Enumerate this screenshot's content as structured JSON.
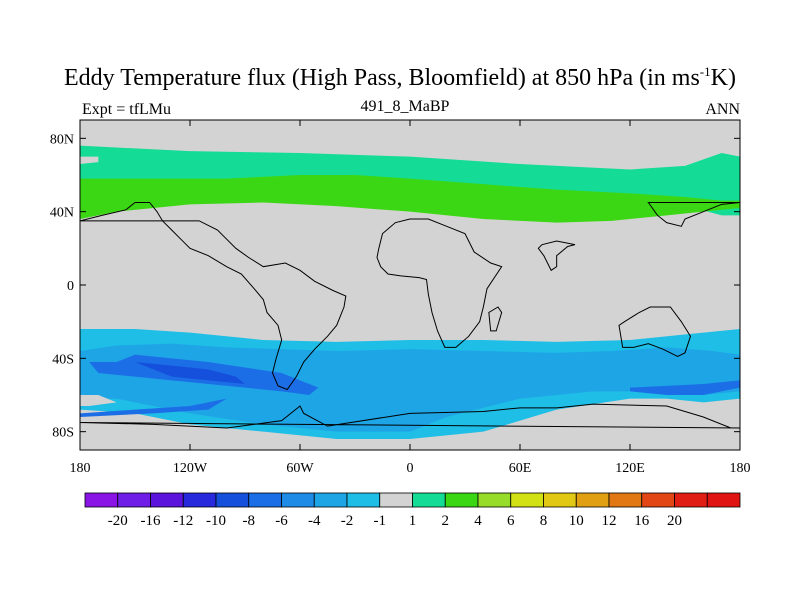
{
  "chart_data": {
    "type": "heatmap",
    "title_prefix": "Eddy Temperature flux (High Pass, Bloomfield) at 850 hPa (in ms",
    "title_sup": "-1",
    "title_suffix": "K)",
    "left_label": "Expt = tfLMu",
    "center_label": "491_8_MaBP",
    "right_label": "ANN",
    "x_range": [
      -180,
      180
    ],
    "y_range": [
      -90,
      90
    ],
    "x_ticks": [
      {
        "value": -180,
        "label": "180"
      },
      {
        "value": -120,
        "label": "120W"
      },
      {
        "value": -60,
        "label": "60W"
      },
      {
        "value": 0,
        "label": "0"
      },
      {
        "value": 60,
        "label": "60E"
      },
      {
        "value": 120,
        "label": "120E"
      },
      {
        "value": 180,
        "label": "180"
      }
    ],
    "y_ticks": [
      {
        "value": 80,
        "label": "80N"
      },
      {
        "value": 40,
        "label": "40N"
      },
      {
        "value": 0,
        "label": "0"
      },
      {
        "value": -40,
        "label": "40S"
      },
      {
        "value": -80,
        "label": "80S"
      }
    ],
    "background_color": "#d3d3d3",
    "colorbar": {
      "colors": [
        "#8a14e6",
        "#6e1ee6",
        "#5a14dc",
        "#2828dc",
        "#1450dc",
        "#1c6ee6",
        "#1e8ce6",
        "#1ea5e6",
        "#1ebee6",
        "#d3d3d3",
        "#14dc96",
        "#3cd714",
        "#96dc28",
        "#d2e114",
        "#e1c814",
        "#e1a014",
        "#e17814",
        "#e14614",
        "#e11e14",
        "#e11414"
      ],
      "labels": [
        "-20",
        "-16",
        "-12",
        "-10",
        "-8",
        "-6",
        "-4",
        "-2",
        "-1",
        "1",
        "2",
        "4",
        "6",
        "8",
        "10",
        "12",
        "16",
        "20"
      ]
    },
    "regions": [
      {
        "name": "nh-light-band",
        "color": "#14dc96",
        "points": [
          [
            -180,
            76
          ],
          [
            -120,
            73
          ],
          [
            -60,
            72
          ],
          [
            0,
            70
          ],
          [
            60,
            66
          ],
          [
            120,
            63
          ],
          [
            150,
            65
          ],
          [
            170,
            72
          ],
          [
            180,
            70
          ],
          [
            180,
            38
          ],
          [
            170,
            38
          ],
          [
            155,
            42
          ],
          [
            120,
            45
          ],
          [
            60,
            45
          ],
          [
            0,
            50
          ],
          [
            -60,
            55
          ],
          [
            -120,
            50
          ],
          [
            -180,
            36
          ]
        ]
      },
      {
        "name": "nh-strong-band",
        "color": "#3cd714",
        "points": [
          [
            -180,
            58
          ],
          [
            -140,
            58
          ],
          [
            -100,
            58
          ],
          [
            -60,
            60
          ],
          [
            -30,
            60
          ],
          [
            0,
            58
          ],
          [
            40,
            55
          ],
          [
            80,
            52
          ],
          [
            120,
            50
          ],
          [
            150,
            48
          ],
          [
            170,
            46
          ],
          [
            180,
            46
          ],
          [
            180,
            42
          ],
          [
            160,
            40
          ],
          [
            140,
            38
          ],
          [
            110,
            35
          ],
          [
            80,
            34
          ],
          [
            40,
            36
          ],
          [
            0,
            40
          ],
          [
            -40,
            43
          ],
          [
            -80,
            45
          ],
          [
            -120,
            44
          ],
          [
            -160,
            40
          ],
          [
            -180,
            36
          ]
        ]
      },
      {
        "name": "sh-light-band",
        "color": "#1ebee6",
        "points": [
          [
            -180,
            -24
          ],
          [
            -150,
            -24
          ],
          [
            -120,
            -26
          ],
          [
            -80,
            -30
          ],
          [
            -40,
            -31
          ],
          [
            0,
            -30
          ],
          [
            40,
            -30
          ],
          [
            80,
            -31
          ],
          [
            120,
            -30
          ],
          [
            160,
            -26
          ],
          [
            180,
            -24
          ],
          [
            180,
            -62
          ],
          [
            160,
            -64
          ],
          [
            140,
            -62
          ],
          [
            120,
            -62
          ],
          [
            80,
            -68
          ],
          [
            40,
            -80
          ],
          [
            0,
            -84
          ],
          [
            -40,
            -84
          ],
          [
            -80,
            -80
          ],
          [
            -120,
            -76
          ],
          [
            -150,
            -70
          ],
          [
            -180,
            -68
          ]
        ]
      },
      {
        "name": "sh-medium-band",
        "color": "#1ea5e6",
        "points": [
          [
            -180,
            -36
          ],
          [
            -160,
            -33
          ],
          [
            -130,
            -32
          ],
          [
            -100,
            -34
          ],
          [
            -70,
            -35
          ],
          [
            -40,
            -36
          ],
          [
            0,
            -35
          ],
          [
            40,
            -36
          ],
          [
            80,
            -37
          ],
          [
            110,
            -36
          ],
          [
            140,
            -34
          ],
          [
            165,
            -36
          ],
          [
            180,
            -38
          ],
          [
            180,
            -58
          ],
          [
            160,
            -60
          ],
          [
            130,
            -58
          ],
          [
            100,
            -58
          ],
          [
            60,
            -62
          ],
          [
            20,
            -72
          ],
          [
            0,
            -80
          ],
          [
            -40,
            -80
          ],
          [
            -80,
            -76
          ],
          [
            -120,
            -70
          ],
          [
            -160,
            -62
          ],
          [
            -180,
            -62
          ]
        ]
      },
      {
        "name": "sh-strong-band",
        "color": "#1c6ee6",
        "points": [
          [
            -175,
            -42
          ],
          [
            -160,
            -42
          ],
          [
            -150,
            -38
          ],
          [
            -130,
            -40
          ],
          [
            -110,
            -42
          ],
          [
            -90,
            -45
          ],
          [
            -70,
            -48
          ],
          [
            -60,
            -52
          ],
          [
            -50,
            -56
          ],
          [
            -55,
            -60
          ],
          [
            -70,
            -58
          ],
          [
            -90,
            -56
          ],
          [
            -110,
            -54
          ],
          [
            -130,
            -52
          ],
          [
            -150,
            -50
          ],
          [
            -170,
            -48
          ]
        ]
      },
      {
        "name": "sh-core",
        "color": "#1450dc",
        "points": [
          [
            -150,
            -42
          ],
          [
            -130,
            -44
          ],
          [
            -110,
            -46
          ],
          [
            -95,
            -50
          ],
          [
            -90,
            -54
          ],
          [
            -110,
            -52
          ],
          [
            -130,
            -50
          ]
        ]
      },
      {
        "name": "sh-lower-strip",
        "color": "#1c6ee6",
        "points": [
          [
            -180,
            -70
          ],
          [
            -150,
            -68
          ],
          [
            -120,
            -66
          ],
          [
            -100,
            -62
          ],
          [
            -110,
            -68
          ],
          [
            -140,
            -70
          ],
          [
            -180,
            -72
          ]
        ]
      },
      {
        "name": "sh-east-strip",
        "color": "#1c6ee6",
        "points": [
          [
            120,
            -56
          ],
          [
            140,
            -55
          ],
          [
            160,
            -54
          ],
          [
            180,
            -52
          ],
          [
            180,
            -56
          ],
          [
            160,
            -60
          ],
          [
            140,
            -60
          ],
          [
            120,
            -58
          ]
        ]
      },
      {
        "name": "grey-south-patch",
        "color": "#d3d3d3",
        "points": [
          [
            -180,
            -60
          ],
          [
            -170,
            -60
          ],
          [
            -160,
            -64
          ],
          [
            -175,
            -66
          ],
          [
            -180,
            -66
          ]
        ]
      },
      {
        "name": "grey-nw-patch",
        "color": "#d3d3d3",
        "points": [
          [
            -180,
            70
          ],
          [
            -170,
            70
          ],
          [
            -170,
            67
          ],
          [
            -180,
            66
          ]
        ]
      }
    ],
    "coastlines": [
      {
        "name": "americas",
        "points": [
          [
            -180,
            35
          ],
          [
            -168,
            38
          ],
          [
            -155,
            41
          ],
          [
            -150,
            45
          ],
          [
            -142,
            45
          ],
          [
            -138,
            40
          ],
          [
            -135,
            35
          ],
          [
            -130,
            30
          ],
          [
            -125,
            25
          ],
          [
            -120,
            20
          ],
          [
            -110,
            16
          ],
          [
            -100,
            10
          ],
          [
            -92,
            6
          ],
          [
            -85,
            -2
          ],
          [
            -80,
            -8
          ],
          [
            -78,
            -15
          ],
          [
            -72,
            -22
          ],
          [
            -70,
            -30
          ],
          [
            -73,
            -40
          ],
          [
            -75,
            -48
          ],
          [
            -72,
            -55
          ],
          [
            -67,
            -57
          ],
          [
            -62,
            -50
          ],
          [
            -58,
            -42
          ],
          [
            -52,
            -35
          ],
          [
            -45,
            -28
          ],
          [
            -40,
            -22
          ],
          [
            -36,
            -12
          ],
          [
            -35,
            -6
          ],
          [
            -42,
            -3
          ],
          [
            -52,
            2
          ],
          [
            -60,
            8
          ],
          [
            -68,
            12
          ],
          [
            -80,
            10
          ],
          [
            -88,
            15
          ],
          [
            -95,
            20
          ],
          [
            -100,
            25
          ],
          [
            -105,
            30
          ],
          [
            -115,
            35
          ]
        ]
      },
      {
        "name": "africa",
        "points": [
          [
            -18,
            15
          ],
          [
            -16,
            10
          ],
          [
            -12,
            6
          ],
          [
            -5,
            5
          ],
          [
            5,
            4
          ],
          [
            9,
            3
          ],
          [
            10,
            -5
          ],
          [
            12,
            -15
          ],
          [
            15,
            -25
          ],
          [
            19,
            -34
          ],
          [
            25,
            -34
          ],
          [
            32,
            -28
          ],
          [
            38,
            -20
          ],
          [
            40,
            -12
          ],
          [
            42,
            -2
          ],
          [
            50,
            10
          ],
          [
            44,
            12
          ],
          [
            35,
            18
          ],
          [
            30,
            28
          ],
          [
            20,
            32
          ],
          [
            10,
            36
          ],
          [
            0,
            36
          ],
          [
            -8,
            34
          ],
          [
            -15,
            28
          ],
          [
            -17,
            20
          ]
        ]
      },
      {
        "name": "eurasia",
        "points": [
          [
            130,
            45
          ],
          [
            135,
            38
          ],
          [
            140,
            34
          ],
          [
            148,
            32
          ],
          [
            150,
            36
          ],
          [
            160,
            40
          ],
          [
            170,
            44
          ],
          [
            180,
            45
          ]
        ]
      },
      {
        "name": "australia",
        "points": [
          [
            114,
            -22
          ],
          [
            116,
            -34
          ],
          [
            122,
            -34
          ],
          [
            130,
            -32
          ],
          [
            138,
            -35
          ],
          [
            146,
            -39
          ],
          [
            150,
            -37
          ],
          [
            153,
            -28
          ],
          [
            148,
            -20
          ],
          [
            142,
            -12
          ],
          [
            137,
            -12
          ],
          [
            131,
            -12
          ],
          [
            125,
            -15
          ],
          [
            117,
            -20
          ]
        ]
      },
      {
        "name": "antarctica",
        "points": [
          [
            -180,
            -75
          ],
          [
            -140,
            -76
          ],
          [
            -100,
            -78
          ],
          [
            -70,
            -74
          ],
          [
            -60,
            -66
          ],
          [
            -58,
            -70
          ],
          [
            -45,
            -77
          ],
          [
            0,
            -70
          ],
          [
            40,
            -69
          ],
          [
            60,
            -67
          ],
          [
            80,
            -67
          ],
          [
            100,
            -65
          ],
          [
            140,
            -66
          ],
          [
            160,
            -72
          ],
          [
            175,
            -78
          ],
          [
            180,
            -78
          ]
        ]
      },
      {
        "name": "india",
        "points": [
          [
            70,
            20
          ],
          [
            73,
            16
          ],
          [
            77,
            8
          ],
          [
            80,
            10
          ],
          [
            80,
            16
          ],
          [
            86,
            21
          ],
          [
            90,
            22
          ],
          [
            80,
            24
          ],
          [
            72,
            22
          ]
        ]
      },
      {
        "name": "madagascar",
        "points": [
          [
            43,
            -15
          ],
          [
            44,
            -25
          ],
          [
            47,
            -25
          ],
          [
            50,
            -15
          ],
          [
            48,
            -12
          ]
        ]
      }
    ]
  }
}
